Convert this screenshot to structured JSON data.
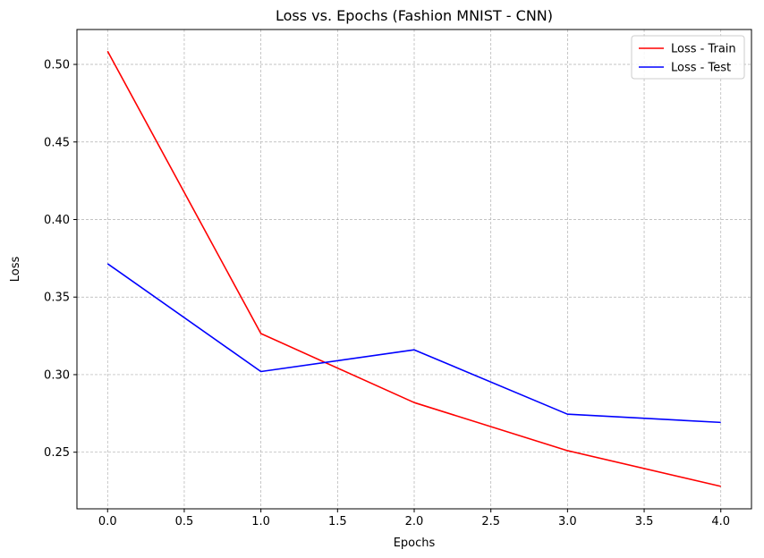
{
  "chart_data": {
    "type": "line",
    "title": "Loss vs. Epochs (Fashion MNIST - CNN)",
    "xlabel": "Epochs",
    "ylabel": "Loss",
    "x": [
      0,
      1,
      2,
      3,
      4
    ],
    "xlim": [
      -0.2,
      4.2
    ],
    "ylim": [
      0.2135,
      0.5225
    ],
    "xticks": [
      0.0,
      0.5,
      1.0,
      1.5,
      2.0,
      2.5,
      3.0,
      3.5,
      4.0
    ],
    "xtick_labels": [
      "0.0",
      "0.5",
      "1.0",
      "1.5",
      "2.0",
      "2.5",
      "3.0",
      "3.5",
      "4.0"
    ],
    "yticks": [
      0.25,
      0.3,
      0.35,
      0.4,
      0.45,
      0.5
    ],
    "ytick_labels": [
      "0.25",
      "0.30",
      "0.35",
      "0.40",
      "0.45",
      "0.50"
    ],
    "grid": true,
    "legend_position": "top-right",
    "series": [
      {
        "name": "Loss - Train",
        "color": "#ff0000",
        "values": [
          0.5085,
          0.3265,
          0.282,
          0.251,
          0.228
        ]
      },
      {
        "name": "Loss - Test",
        "color": "#0000ff",
        "values": [
          0.3715,
          0.302,
          0.316,
          0.2745,
          0.2692
        ]
      }
    ]
  }
}
